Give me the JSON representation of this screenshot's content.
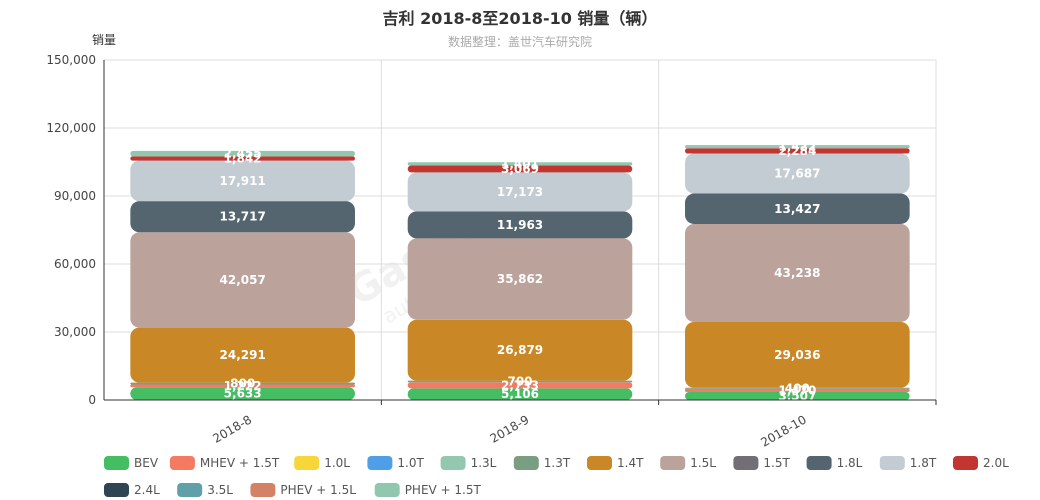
{
  "chart_data": {
    "type": "bar",
    "stacked": true,
    "title": "吉利 2018-8至2018-10 销量（辆）",
    "subtitle": "数据整理：盖世汽车研究院",
    "ylabel": "销量",
    "xlabel": "",
    "ylim": [
      0,
      150000
    ],
    "yticks": [
      "0",
      "30,000",
      "60,000",
      "90,000",
      "120,000",
      "150,000"
    ],
    "ytick_values": [
      0,
      30000,
      60000,
      90000,
      120000,
      150000
    ],
    "grid": true,
    "legend_position": "bottom",
    "categories": [
      "2018-8",
      "2018-9",
      "2018-10"
    ],
    "series": [
      {
        "name": "BEV",
        "color": "#45bd62",
        "values": [
          5633,
          5106,
          3507
        ],
        "labels": [
          "5,633",
          "5,106",
          "3,507"
        ]
      },
      {
        "name": "MHEV + 1.5T",
        "color": "#f57a62",
        "values": [
          1222,
          2733,
          1470
        ],
        "labels": [
          "1,222",
          "2,733",
          "1,470"
        ]
      },
      {
        "name": "1.0L",
        "color": "#f7d63a",
        "values": [
          0,
          0,
          0
        ],
        "labels": [
          "",
          "",
          ""
        ]
      },
      {
        "name": "1.0T",
        "color": "#4f9ee8",
        "values": [
          0,
          0,
          0
        ],
        "labels": [
          "",
          "",
          ""
        ]
      },
      {
        "name": "1.3L",
        "color": "#93c7b0",
        "values": [
          0,
          0,
          0
        ],
        "labels": [
          "",
          "",
          ""
        ]
      },
      {
        "name": "1.3T",
        "color": "#7a9e82",
        "values": [
          800,
          700,
          400
        ],
        "labels": [
          "800",
          "700",
          "400"
        ]
      },
      {
        "name": "1.4T",
        "color": "#c98725",
        "values": [
          24291,
          26879,
          29036
        ],
        "labels": [
          "24,291",
          "26,879",
          "29,036"
        ]
      },
      {
        "name": "1.5L",
        "color": "#bba39b",
        "values": [
          42057,
          35862,
          43238
        ],
        "labels": [
          "42,057",
          "35,862",
          "43,238"
        ]
      },
      {
        "name": "1.5T",
        "color": "#726e75",
        "values": [
          0,
          0,
          0
        ],
        "labels": [
          "",
          "",
          ""
        ]
      },
      {
        "name": "1.8L",
        "color": "#546570",
        "values": [
          13717,
          11963,
          13427
        ],
        "labels": [
          "13,717",
          "11,963",
          "13,427"
        ]
      },
      {
        "name": "1.8T",
        "color": "#c4ccd3",
        "values": [
          17911,
          17173,
          17687
        ],
        "labels": [
          "17,911",
          "17,173",
          "17,687"
        ]
      },
      {
        "name": "2.0L",
        "color": "#c23531",
        "values": [
          1842,
          3069,
          2284
        ],
        "labels": [
          "1,842",
          "3,069",
          "2,284"
        ]
      },
      {
        "name": "2.4L",
        "color": "#2f4554",
        "values": [
          0,
          0,
          0
        ],
        "labels": [
          "",
          "",
          ""
        ]
      },
      {
        "name": "3.5L",
        "color": "#61a0a8",
        "values": [
          0,
          0,
          0
        ],
        "labels": [
          "",
          "",
          ""
        ]
      },
      {
        "name": "PHEV + 1.5L",
        "color": "#d48265",
        "values": [
          0,
          0,
          0
        ],
        "labels": [
          "",
          "",
          ""
        ]
      },
      {
        "name": "PHEV + 1.5T",
        "color": "#91c7ae",
        "values": [
          2455,
          1401,
          1422
        ],
        "labels": [
          "2,455",
          "1,401",
          "1,422"
        ]
      }
    ]
  }
}
